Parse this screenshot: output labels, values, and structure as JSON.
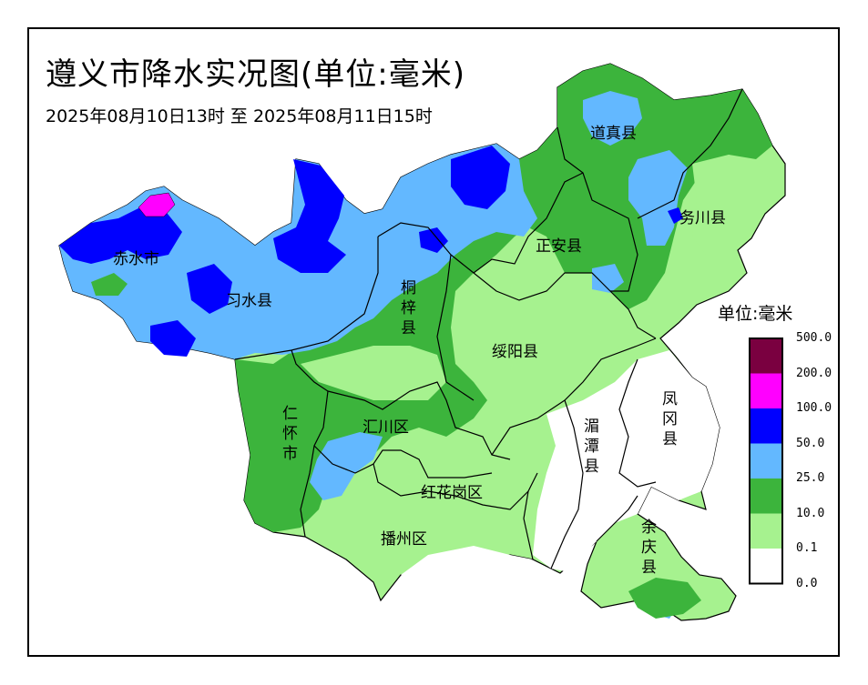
{
  "title": "遵义市降水实况图(单位:毫米)",
  "subtitle": "2025年08月10日13时 至 2025年08月11日15时",
  "legend": {
    "title": "单位:毫米",
    "items": [
      {
        "label": "500.0",
        "color": "#7a0040"
      },
      {
        "label": "200.0",
        "color": "#ff00ff"
      },
      {
        "label": "100.0",
        "color": "#0000ff"
      },
      {
        "label": "50.0",
        "color": "#63b8ff"
      },
      {
        "label": "25.0",
        "color": "#3cb43c"
      },
      {
        "label": "10.0",
        "color": "#a6f28f"
      },
      {
        "label": "0.1",
        "color": "#ffffff"
      },
      {
        "label": "0.0",
        "color": "#ffffff"
      }
    ]
  },
  "counties": {
    "daozhen": "道真县",
    "wuchuan": "务川县",
    "zhengan": "正安县",
    "chishui": "赤水市",
    "xishui": "习水县",
    "tongzi": "桐梓县",
    "suiyang": "绥阳县",
    "renhuai": "仁怀市",
    "huichuan": "汇川区",
    "meitan": "湄潭县",
    "fenggang": "凤冈县",
    "honghuagang": "红花岗区",
    "bozhou": "播州区",
    "yuqing": "余庆县"
  }
}
